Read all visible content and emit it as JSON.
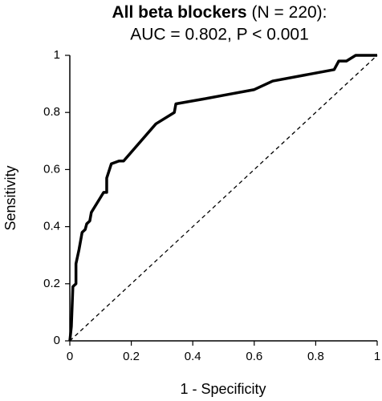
{
  "chart_data": {
    "type": "line",
    "title": "All beta blockers",
    "title_note": "(N = 220):",
    "subtitle": "AUC = 0.802, P < 0.001",
    "x_label": "1 - Specificity",
    "y_label": "Sensitivity",
    "x": [
      0,
      0.005,
      0.01,
      0.02,
      0.02,
      0.03,
      0.035,
      0.04,
      0.05,
      0.055,
      0.065,
      0.07,
      0.11,
      0.12,
      0.12,
      0.135,
      0.16,
      0.175,
      0.28,
      0.34,
      0.345,
      0.45,
      0.5,
      0.6,
      0.66,
      0.86,
      0.875,
      0.9,
      0.93,
      1
    ],
    "values": [
      0,
      0.05,
      0.19,
      0.2,
      0.27,
      0.32,
      0.35,
      0.38,
      0.39,
      0.41,
      0.42,
      0.45,
      0.52,
      0.52,
      0.57,
      0.62,
      0.63,
      0.63,
      0.76,
      0.8,
      0.83,
      0.85,
      0.86,
      0.88,
      0.91,
      0.95,
      0.98,
      0.98,
      1,
      1
    ],
    "color": "#000000",
    "xlim": [
      0,
      1
    ],
    "ylim": [
      0,
      1
    ],
    "xticks": [
      0,
      0.2,
      0.4,
      0.6,
      0.8,
      1
    ],
    "yticks": [
      0,
      0.2,
      0.4,
      0.6,
      0.8,
      1
    ],
    "grid": false
  }
}
